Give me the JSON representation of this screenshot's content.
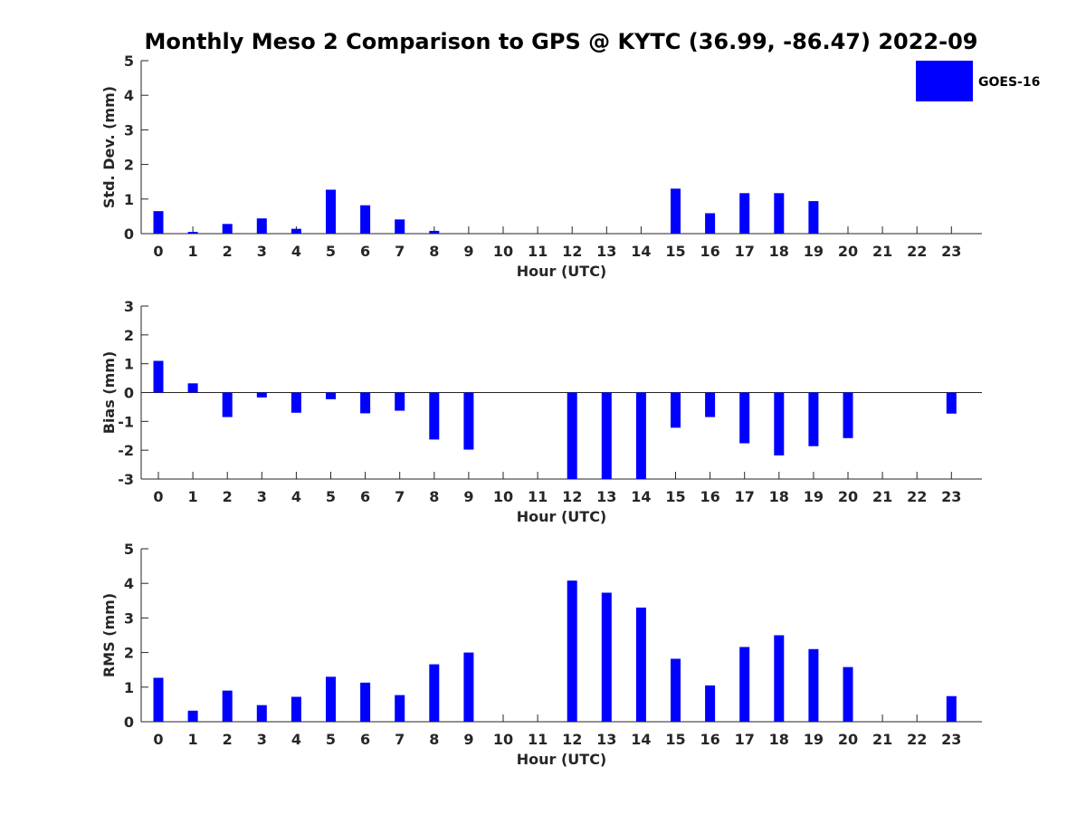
{
  "colors": {
    "bar": "#0000ff",
    "axis": "#262626"
  },
  "chart_data": {
    "title": "Monthly Meso 2 Comparison to GPS @ KYTC (36.99, -86.47) 2022-09",
    "legend": {
      "label": "GOES-16",
      "location": "top-right"
    },
    "xlabel": "Hour (UTC)",
    "categories": [
      "0",
      "1",
      "2",
      "3",
      "4",
      "5",
      "6",
      "7",
      "8",
      "9",
      "10",
      "11",
      "12",
      "13",
      "14",
      "15",
      "16",
      "17",
      "18",
      "19",
      "20",
      "21",
      "22",
      "23"
    ],
    "panels": [
      {
        "type": "bar",
        "name": "std-dev",
        "ylabel": "Std. Dev. (mm)",
        "ylim": [
          0,
          5
        ],
        "yticks": [
          0,
          1,
          2,
          3,
          4,
          5
        ],
        "values": [
          0.65,
          0.05,
          0.28,
          0.44,
          0.14,
          1.27,
          0.82,
          0.41,
          0.08,
          0,
          0,
          0,
          0,
          0,
          0,
          1.3,
          0.59,
          1.17,
          1.17,
          0.94,
          0,
          0,
          0,
          0
        ]
      },
      {
        "type": "bar",
        "name": "bias",
        "ylabel": "Bias (mm)",
        "ylim": [
          -3,
          3
        ],
        "yticks": [
          -3,
          -2,
          -1,
          0,
          1,
          2,
          3
        ],
        "values": [
          1.1,
          0.32,
          -0.85,
          -0.17,
          -0.7,
          -0.23,
          -0.72,
          -0.63,
          -1.63,
          -1.98,
          0,
          0,
          -3.0,
          -3.0,
          -3.0,
          -1.22,
          -0.85,
          -1.76,
          -2.18,
          -1.86,
          -1.58,
          0,
          0,
          -0.73
        ]
      },
      {
        "type": "bar",
        "name": "rms",
        "ylabel": "RMS (mm)",
        "ylim": [
          0,
          5
        ],
        "yticks": [
          0,
          1,
          2,
          3,
          4,
          5
        ],
        "values": [
          1.27,
          0.32,
          0.9,
          0.48,
          0.72,
          1.3,
          1.13,
          0.77,
          1.66,
          2.0,
          0,
          0,
          4.08,
          3.73,
          3.3,
          1.82,
          1.05,
          2.16,
          2.5,
          2.1,
          1.58,
          0,
          0,
          0.74
        ]
      }
    ]
  }
}
